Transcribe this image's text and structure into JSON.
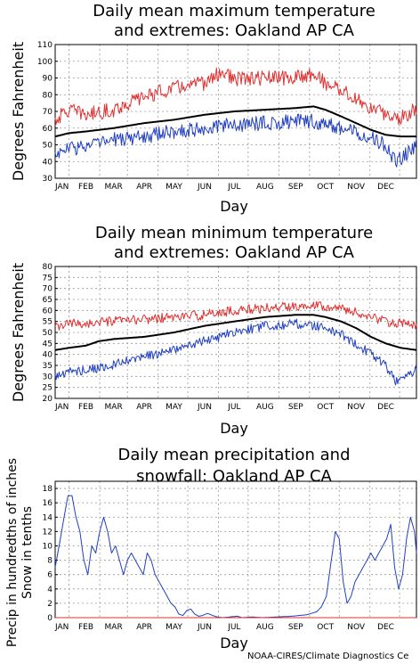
{
  "footer": "NOAA-CIRES/Climate Diagnostics Ce",
  "months": [
    "JAN",
    "FEB",
    "MAR",
    "APR",
    "MAY",
    "JUN",
    "JUL",
    "AUG",
    "SEP",
    "OCT",
    "NOV",
    "DEC"
  ],
  "colors": {
    "mean": "#000000",
    "max": "#e03030",
    "min": "#2040c0",
    "snow": "#e03030",
    "grid": "#999999"
  },
  "chart_data": [
    {
      "type": "line",
      "title": [
        "Daily mean maximum temperature",
        "and extremes: Oakland AP CA"
      ],
      "xlabel": "Day",
      "ylabel": "Degrees Fahrenheit",
      "ylim": [
        30,
        110
      ],
      "yticks": [
        30,
        40,
        50,
        60,
        70,
        80,
        90,
        100,
        110
      ],
      "grid": true,
      "series": [
        {
          "role": "mean",
          "knots": [
            [
              1,
              55
            ],
            [
              15,
              57
            ],
            [
              32,
              58
            ],
            [
              60,
              60
            ],
            [
              91,
              63
            ],
            [
              121,
              65
            ],
            [
              152,
              68
            ],
            [
              182,
              70
            ],
            [
              213,
              71
            ],
            [
              244,
              72
            ],
            [
              262,
              73
            ],
            [
              274,
              71
            ],
            [
              290,
              67
            ],
            [
              305,
              63
            ],
            [
              320,
              59
            ],
            [
              335,
              56
            ],
            [
              350,
              55
            ],
            [
              366,
              55
            ]
          ]
        },
        {
          "role": "max",
          "knots": [
            [
              1,
              65
            ],
            [
              15,
              71
            ],
            [
              32,
              68
            ],
            [
              60,
              71
            ],
            [
              91,
              79
            ],
            [
              121,
              84
            ],
            [
              152,
              87
            ],
            [
              170,
              94
            ],
            [
              182,
              89
            ],
            [
              213,
              90
            ],
            [
              244,
              90
            ],
            [
              262,
              93
            ],
            [
              274,
              87
            ],
            [
              290,
              83
            ],
            [
              305,
              77
            ],
            [
              320,
              72
            ],
            [
              335,
              68
            ],
            [
              350,
              66
            ],
            [
              366,
              72
            ]
          ]
        },
        {
          "role": "min",
          "knots": [
            [
              1,
              44
            ],
            [
              15,
              48
            ],
            [
              32,
              49
            ],
            [
              60,
              53
            ],
            [
              91,
              55
            ],
            [
              121,
              58
            ],
            [
              152,
              60
            ],
            [
              182,
              62
            ],
            [
              213,
              63
            ],
            [
              244,
              64
            ],
            [
              262,
              64
            ],
            [
              274,
              62
            ],
            [
              290,
              60
            ],
            [
              305,
              58
            ],
            [
              320,
              55
            ],
            [
              335,
              49
            ],
            [
              345,
              40
            ],
            [
              355,
              44
            ],
            [
              366,
              50
            ]
          ]
        }
      ]
    },
    {
      "type": "line",
      "title": [
        "Daily mean minimum temperature",
        "and extremes: Oakland AP CA"
      ],
      "xlabel": "Day",
      "ylabel": "Degrees Fahrenheit",
      "ylim": [
        20,
        80
      ],
      "yticks": [
        20,
        25,
        30,
        35,
        40,
        45,
        50,
        55,
        60,
        65,
        70,
        75,
        80
      ],
      "grid": true,
      "series": [
        {
          "role": "mean",
          "knots": [
            [
              1,
              42
            ],
            [
              15,
              43
            ],
            [
              32,
              44
            ],
            [
              45,
              46
            ],
            [
              60,
              47
            ],
            [
              91,
              48
            ],
            [
              121,
              50
            ],
            [
              152,
              53
            ],
            [
              182,
              55
            ],
            [
              213,
              57
            ],
            [
              244,
              58
            ],
            [
              262,
              58
            ],
            [
              274,
              57
            ],
            [
              290,
              55
            ],
            [
              305,
              52
            ],
            [
              320,
              48
            ],
            [
              335,
              45
            ],
            [
              350,
              43
            ],
            [
              366,
              42
            ]
          ]
        },
        {
          "role": "max",
          "knots": [
            [
              1,
              52
            ],
            [
              15,
              54
            ],
            [
              32,
              54
            ],
            [
              60,
              55
            ],
            [
              91,
              56
            ],
            [
              121,
              57
            ],
            [
              152,
              58
            ],
            [
              182,
              60
            ],
            [
              213,
              61
            ],
            [
              244,
              62
            ],
            [
              262,
              63
            ],
            [
              274,
              62
            ],
            [
              290,
              61
            ],
            [
              305,
              59
            ],
            [
              320,
              57
            ],
            [
              335,
              55
            ],
            [
              350,
              54
            ],
            [
              366,
              53
            ]
          ]
        },
        {
          "role": "min",
          "knots": [
            [
              1,
              30
            ],
            [
              15,
              32
            ],
            [
              32,
              33
            ],
            [
              60,
              35
            ],
            [
              91,
              39
            ],
            [
              121,
              42
            ],
            [
              152,
              46
            ],
            [
              182,
              50
            ],
            [
              213,
              53
            ],
            [
              244,
              54
            ],
            [
              262,
              53
            ],
            [
              274,
              52
            ],
            [
              290,
              49
            ],
            [
              305,
              45
            ],
            [
              320,
              40
            ],
            [
              335,
              35
            ],
            [
              345,
              28
            ],
            [
              355,
              30
            ],
            [
              366,
              33
            ]
          ]
        }
      ]
    },
    {
      "type": "line",
      "title": [
        "Daily mean precipitation and",
        "snowfall: Oakland AP CA"
      ],
      "xlabel": "Day",
      "ylabel": [
        "Precip in hundredths of inches",
        "Snow in tenths"
      ],
      "ylim": [
        0,
        19
      ],
      "yticks": [
        0,
        2,
        4,
        6,
        8,
        10,
        12,
        14,
        16,
        18
      ],
      "grid": true,
      "series": [
        {
          "role": "min",
          "name": "precipitation",
          "knots": [
            [
              1,
              7
            ],
            [
              5,
              10
            ],
            [
              10,
              14
            ],
            [
              14,
              17
            ],
            [
              18,
              17
            ],
            [
              22,
              14
            ],
            [
              26,
              12
            ],
            [
              30,
              8
            ],
            [
              34,
              6
            ],
            [
              38,
              10
            ],
            [
              42,
              9
            ],
            [
              46,
              12
            ],
            [
              50,
              14
            ],
            [
              54,
              12
            ],
            [
              58,
              9
            ],
            [
              62,
              10
            ],
            [
              66,
              8
            ],
            [
              70,
              6
            ],
            [
              74,
              8
            ],
            [
              78,
              9
            ],
            [
              82,
              8
            ],
            [
              86,
              7
            ],
            [
              90,
              6
            ],
            [
              94,
              9
            ],
            [
              98,
              8
            ],
            [
              102,
              6
            ],
            [
              106,
              5
            ],
            [
              110,
              4
            ],
            [
              114,
              3
            ],
            [
              118,
              2
            ],
            [
              122,
              1.5
            ],
            [
              126,
              0.5
            ],
            [
              130,
              0.3
            ],
            [
              134,
              1
            ],
            [
              138,
              1.2
            ],
            [
              142,
              0.5
            ],
            [
              146,
              0.2
            ],
            [
              150,
              0.3
            ],
            [
              155,
              0.6
            ],
            [
              160,
              0.3
            ],
            [
              165,
              0.1
            ],
            [
              170,
              0
            ],
            [
              185,
              0.2
            ],
            [
              190,
              0
            ],
            [
              200,
              0.1
            ],
            [
              210,
              0
            ],
            [
              225,
              0.1
            ],
            [
              240,
              0.2
            ],
            [
              255,
              0.4
            ],
            [
              265,
              0.8
            ],
            [
              270,
              1.5
            ],
            [
              275,
              3
            ],
            [
              280,
              8
            ],
            [
              284,
              12
            ],
            [
              288,
              11
            ],
            [
              292,
              5
            ],
            [
              296,
              2
            ],
            [
              300,
              3
            ],
            [
              304,
              5
            ],
            [
              308,
              6
            ],
            [
              312,
              7
            ],
            [
              316,
              8
            ],
            [
              320,
              9
            ],
            [
              324,
              8
            ],
            [
              328,
              9
            ],
            [
              332,
              10
            ],
            [
              336,
              11
            ],
            [
              340,
              13
            ],
            [
              344,
              7
            ],
            [
              348,
              4
            ],
            [
              352,
              6
            ],
            [
              356,
              11
            ],
            [
              360,
              14
            ],
            [
              364,
              12
            ],
            [
              366,
              9
            ]
          ]
        },
        {
          "role": "snow",
          "name": "snowfall",
          "knots": [
            [
              1,
              0
            ],
            [
              366,
              0
            ]
          ]
        }
      ]
    }
  ]
}
